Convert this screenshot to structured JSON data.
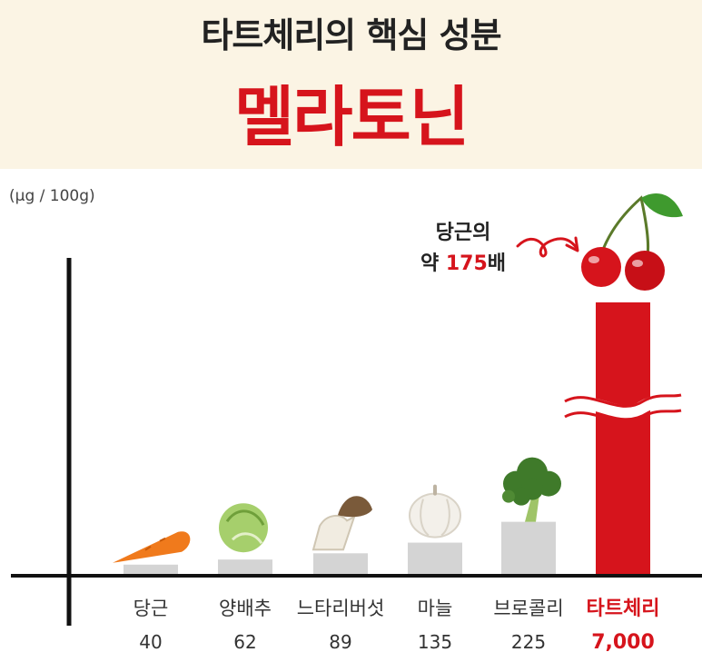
{
  "header": {
    "title": "타트체리의 핵심 성분",
    "subtitle": "멜라토닌"
  },
  "annotation": {
    "line1": "당근의",
    "prefix": "약 ",
    "multiplier": "175",
    "suffix": "배"
  },
  "colors": {
    "accent": "#d6141c",
    "bar": "#d4d4d4",
    "axis": "#111111",
    "header_bg": "#fbf4e4"
  },
  "chart_data": {
    "type": "bar",
    "unit_label": "(µg / 100g)",
    "categories": [
      "당근",
      "양배추",
      "느타리버섯",
      "마늘",
      "브로콜리",
      "타트체리"
    ],
    "value_labels": [
      "40",
      "62",
      "89",
      "135",
      "225",
      "7,000"
    ],
    "values": [
      40,
      62,
      89,
      135,
      225,
      7000
    ],
    "highlight_index": 5,
    "axis_break": true,
    "icons": [
      "carrot-icon",
      "cabbage-icon",
      "mushroom-icon",
      "garlic-icon",
      "broccoli-icon",
      "cherry-icon"
    ]
  }
}
